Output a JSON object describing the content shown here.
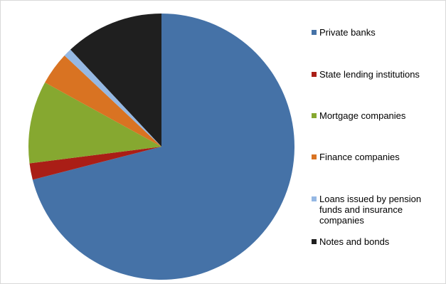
{
  "chart_data": {
    "type": "pie",
    "title": "",
    "start": "top",
    "direction": "clockwise",
    "legend_position": "right",
    "slices": [
      {
        "label": "Private banks",
        "value": 71.0,
        "color": "#4572a7"
      },
      {
        "label": "State lending institutions",
        "value": 2.0,
        "color": "#aa1e16"
      },
      {
        "label": "Mortgage companies",
        "value": 10.0,
        "color": "#86a830"
      },
      {
        "label": "Finance companies",
        "value": 4.0,
        "color": "#d97322"
      },
      {
        "label": "Loans issued by pension funds and insurance companies",
        "value": 1.0,
        "color": "#95b8e3"
      },
      {
        "label": "Notes and bonds",
        "value": 12.0,
        "color": "#1f1f1f"
      }
    ]
  }
}
